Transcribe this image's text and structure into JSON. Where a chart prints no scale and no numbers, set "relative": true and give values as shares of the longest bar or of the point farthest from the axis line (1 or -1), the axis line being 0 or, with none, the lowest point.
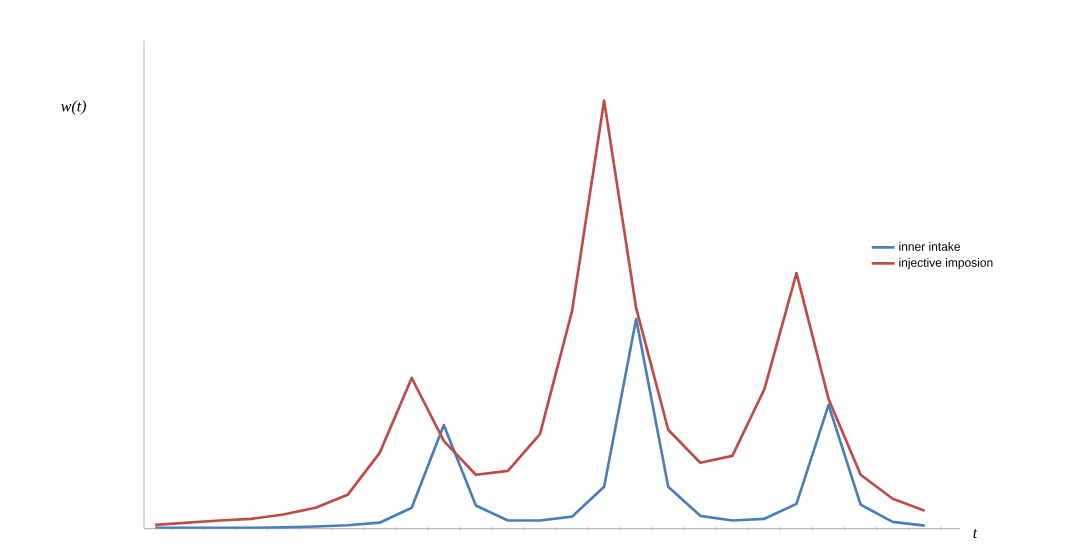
{
  "chart_data": {
    "type": "line",
    "relative": true,
    "ylabel": "w(t)",
    "xlabel": "t",
    "categories": [
      null,
      null,
      null,
      null,
      null,
      null,
      null,
      null,
      null,
      null,
      null,
      null,
      null,
      null,
      null,
      null,
      null,
      null,
      null,
      null,
      null,
      null,
      null,
      null,
      null
    ],
    "series": [
      {
        "name": "inner intake",
        "color": "#4a7ebb",
        "values": [
          0.002,
          0.002,
          0.002,
          0.002,
          0.003,
          0.005,
          0.008,
          0.014,
          0.049,
          0.242,
          0.054,
          0.019,
          0.019,
          0.028,
          0.098,
          0.49,
          0.098,
          0.03,
          0.019,
          0.023,
          0.058,
          0.289,
          0.056,
          0.016,
          0.007
        ]
      },
      {
        "name": "injective imposion",
        "color": "#be4b48",
        "values": [
          0.009,
          0.014,
          0.019,
          0.023,
          0.033,
          0.049,
          0.079,
          0.177,
          0.352,
          0.205,
          0.126,
          0.135,
          0.221,
          0.508,
          1,
          0.515,
          0.231,
          0.154,
          0.17,
          0.326,
          0.597,
          0.303,
          0.126,
          0.07,
          0.042
        ]
      }
    ],
    "legend": "right",
    "marker": "none",
    "line_style": "solid",
    "grid": false
  }
}
